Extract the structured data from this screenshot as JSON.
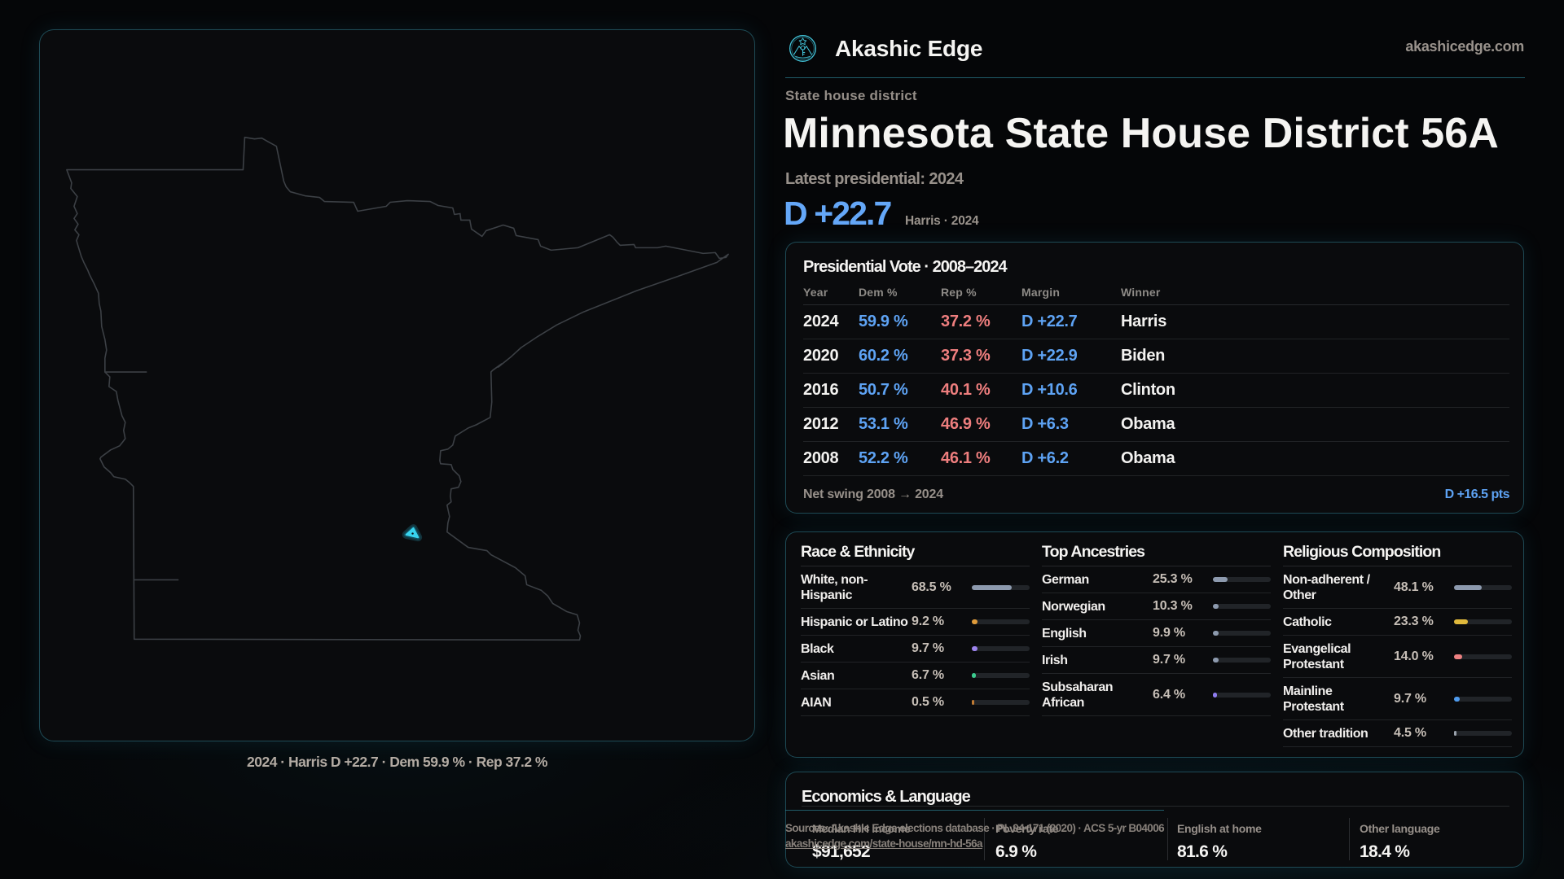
{
  "brand": {
    "name": "Akashic Edge",
    "domain": "akashicedge.com"
  },
  "page": {
    "kicker": "State house district",
    "title": "Minnesota State House District 56A",
    "subtitle": "Latest presidential: 2024",
    "headline_margin": "D +22.7",
    "headline_note": "Harris · 2024"
  },
  "map": {
    "caption": "2024 · Harris D +22.7 · Dem 59.9 % · Rep 37.2 %",
    "state": "Minnesota",
    "district": "Minnesota State House District 56A",
    "outline_color": "#3c4045",
    "marker_color": "#38d4ef"
  },
  "presidential_vote": {
    "title": "Presidential Vote · 2008–2024",
    "columns": [
      "Year",
      "Dem %",
      "Rep %",
      "Margin",
      "Winner"
    ],
    "rows": [
      {
        "year": "2024",
        "dem": "59.9 %",
        "rep": "37.2 %",
        "margin": "D +22.7",
        "winner": "Harris"
      },
      {
        "year": "2020",
        "dem": "60.2 %",
        "rep": "37.3 %",
        "margin": "D +22.9",
        "winner": "Biden"
      },
      {
        "year": "2016",
        "dem": "50.7 %",
        "rep": "40.1 %",
        "margin": "D +10.6",
        "winner": "Clinton"
      },
      {
        "year": "2012",
        "dem": "53.1 %",
        "rep": "46.9 %",
        "margin": "D +6.3",
        "winner": "Obama"
      },
      {
        "year": "2008",
        "dem": "52.2 %",
        "rep": "46.1 %",
        "margin": "D +6.2",
        "winner": "Obama"
      }
    ],
    "footer_label": "Net swing 2008 → 2024",
    "footer_value": "D +16.5 pts"
  },
  "demographics": {
    "race": {
      "title": "Race & Ethnicity",
      "rows": [
        {
          "label": "White, non-Hispanic",
          "value": "68.5 %",
          "pct": 68.5,
          "color": "#8d9aae"
        },
        {
          "label": "Hispanic or Latino",
          "value": "9.2 %",
          "pct": 9.2,
          "color": "#df9b3a"
        },
        {
          "label": "Black",
          "value": "9.7 %",
          "pct": 9.7,
          "color": "#9d84ee"
        },
        {
          "label": "Asian",
          "value": "6.7 %",
          "pct": 6.7,
          "color": "#3bcb8e"
        },
        {
          "label": "AIAN",
          "value": "0.5 %",
          "pct": 0.5,
          "color": "#c07b33"
        }
      ]
    },
    "ancestries": {
      "title": "Top Ancestries",
      "rows": [
        {
          "label": "German",
          "value": "25.3 %",
          "pct": 25.3,
          "color": "#8d9aae"
        },
        {
          "label": "Norwegian",
          "value": "10.3 %",
          "pct": 10.3,
          "color": "#8d9aae"
        },
        {
          "label": "English",
          "value": "9.9 %",
          "pct": 9.9,
          "color": "#8d9aae"
        },
        {
          "label": "Irish",
          "value": "9.7 %",
          "pct": 9.7,
          "color": "#8d9aae"
        },
        {
          "label": "Subsaharan African",
          "value": "6.4 %",
          "pct": 6.4,
          "color": "#8f7df0"
        }
      ]
    },
    "religion": {
      "title": "Religious Composition",
      "rows": [
        {
          "label": "Non-adherent / Other",
          "value": "48.1 %",
          "pct": 48.1,
          "color": "#8d9aae"
        },
        {
          "label": "Catholic",
          "value": "23.3 %",
          "pct": 23.3,
          "color": "#e0b93c"
        },
        {
          "label": "Evangelical Protestant",
          "value": "14.0 %",
          "pct": 14.0,
          "color": "#ed8181"
        },
        {
          "label": "Mainline Protestant",
          "value": "9.7 %",
          "pct": 9.7,
          "color": "#4e9bee"
        },
        {
          "label": "Other tradition",
          "value": "4.5 %",
          "pct": 4.5,
          "color": "#9aa2ac"
        }
      ]
    }
  },
  "economics": {
    "title": "Economics & Language",
    "stats": [
      {
        "label": "Median HH income",
        "value": "$91,652"
      },
      {
        "label": "Poverty rate",
        "value": "6.9 %"
      },
      {
        "label": "English at home",
        "value": "81.6 %"
      },
      {
        "label": "Other language",
        "value": "18.4 %"
      }
    ]
  },
  "sources": {
    "line1": "Sources: Akashic Edge elections database · PL 94-171 (2020) · ACS 5-yr B04006",
    "line2": "akashicedge.com/state-house/mn-hd-56a"
  }
}
